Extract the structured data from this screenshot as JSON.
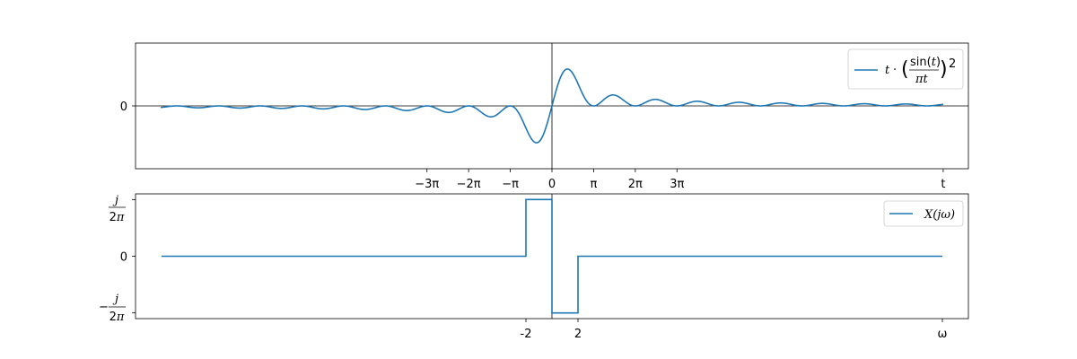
{
  "chart_data": [
    {
      "type": "line",
      "function": "t * (sin(t) / (pi t))^2",
      "x_range": [
        -29.5,
        29.5
      ],
      "xlim": [
        -31.4,
        31.4
      ],
      "ylim": [
        -0.125,
        0.125
      ],
      "xticks": [
        {
          "value": -9.42478,
          "label": "−3π"
        },
        {
          "value": -6.28319,
          "label": "−2π"
        },
        {
          "value": -3.14159,
          "label": "−π"
        },
        {
          "value": 0,
          "label": "0"
        },
        {
          "value": 3.14159,
          "label": "π"
        },
        {
          "value": 6.28319,
          "label": "2π"
        },
        {
          "value": 9.42478,
          "label": "3π"
        },
        {
          "value": 29.5,
          "label": "t"
        }
      ],
      "yticks": [
        {
          "value": 0,
          "label": "0"
        }
      ],
      "series": [
        {
          "name": "t·(sin(t)/πt)²",
          "color": "#1f77b4"
        }
      ],
      "legend": {
        "position": "top-right",
        "label": "t · (sin(t)/πt)²"
      },
      "axhline": 0,
      "axvline": 0
    },
    {
      "type": "line",
      "step": true,
      "x": [
        -30,
        -2,
        -2,
        0,
        0,
        2,
        2,
        30
      ],
      "values": [
        0,
        0,
        0.159,
        0.159,
        -0.159,
        -0.159,
        0,
        0
      ],
      "xlim": [
        -32,
        32
      ],
      "ylim": [
        -0.175,
        0.175
      ],
      "xticks": [
        {
          "value": -2,
          "label": "-2"
        },
        {
          "value": 2,
          "label": "2"
        },
        {
          "value": 30,
          "label": "ω"
        }
      ],
      "yticks": [
        {
          "value": 0.159,
          "label": "j/2π"
        },
        {
          "value": 0,
          "label": "0"
        },
        {
          "value": -0.159,
          "label": "−j/2π"
        }
      ],
      "series": [
        {
          "name": "X(jω)",
          "color": "#1f77b4"
        }
      ],
      "legend": {
        "position": "top-right",
        "label": "X(jω)"
      },
      "axvline": 0
    }
  ]
}
